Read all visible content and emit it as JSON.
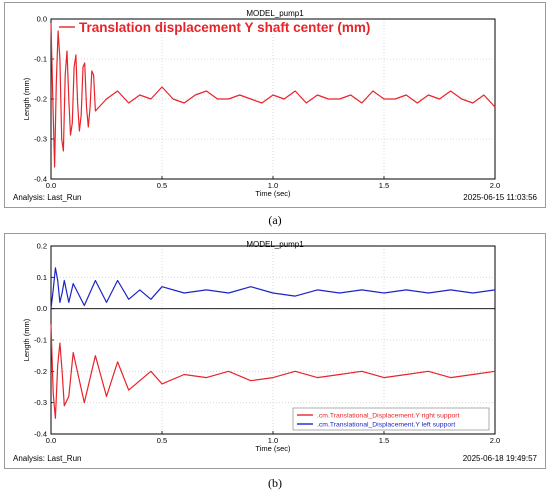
{
  "chart_data": [
    {
      "type": "line",
      "title": "MODEL_pump1",
      "xlabel": "Time (sec)",
      "ylabel": "Length (mm)",
      "xlim": [
        0.0,
        2.0
      ],
      "ylim": [
        -0.4,
        0.0
      ],
      "xticks": [
        "0.0",
        "0.5",
        "1.0",
        "1.5",
        "2.0"
      ],
      "yticks": [
        "0.0",
        "-0.1",
        "-0.2",
        "-0.3",
        "-0.4"
      ],
      "grid": true,
      "legend_position": "top-left",
      "analysis_label": "Analysis:  Last_Run",
      "timestamp": "2025-06-15 11:03:56",
      "caption": "(a)",
      "series": [
        {
          "name": "Translation displacement Y shaft center (mm)",
          "color": "#e8242b",
          "x": [
            0.0,
            0.008,
            0.016,
            0.024,
            0.032,
            0.04,
            0.048,
            0.056,
            0.064,
            0.072,
            0.08,
            0.088,
            0.096,
            0.104,
            0.112,
            0.12,
            0.128,
            0.136,
            0.144,
            0.152,
            0.16,
            0.168,
            0.176,
            0.184,
            0.192,
            0.2,
            0.25,
            0.3,
            0.35,
            0.4,
            0.45,
            0.5,
            0.55,
            0.6,
            0.65,
            0.7,
            0.75,
            0.8,
            0.85,
            0.9,
            0.95,
            1.0,
            1.05,
            1.1,
            1.15,
            1.2,
            1.25,
            1.3,
            1.35,
            1.4,
            1.45,
            1.5,
            1.55,
            1.6,
            1.65,
            1.7,
            1.75,
            1.8,
            1.85,
            1.9,
            1.95,
            2.0
          ],
          "y": [
            -0.01,
            -0.2,
            -0.37,
            -0.16,
            -0.03,
            -0.1,
            -0.3,
            -0.33,
            -0.14,
            -0.08,
            -0.2,
            -0.29,
            -0.26,
            -0.12,
            -0.09,
            -0.21,
            -0.28,
            -0.24,
            -0.12,
            -0.11,
            -0.22,
            -0.27,
            -0.22,
            -0.13,
            -0.14,
            -0.23,
            -0.2,
            -0.18,
            -0.21,
            -0.19,
            -0.2,
            -0.17,
            -0.2,
            -0.21,
            -0.19,
            -0.18,
            -0.2,
            -0.2,
            -0.19,
            -0.2,
            -0.21,
            -0.19,
            -0.2,
            -0.18,
            -0.21,
            -0.19,
            -0.2,
            -0.2,
            -0.19,
            -0.21,
            -0.18,
            -0.2,
            -0.2,
            -0.19,
            -0.21,
            -0.19,
            -0.2,
            -0.18,
            -0.2,
            -0.21,
            -0.19,
            -0.22
          ]
        }
      ]
    },
    {
      "type": "line",
      "title": "MODEL_pump1",
      "xlabel": "Time (sec)",
      "ylabel": "Length (mm)",
      "xlim": [
        0.0,
        2.0
      ],
      "ylim": [
        -0.4,
        0.2
      ],
      "xticks": [
        "0.0",
        "0.5",
        "1.0",
        "1.5",
        "2.0"
      ],
      "yticks": [
        "0.2",
        "0.1",
        "0.0",
        "-0.1",
        "-0.2",
        "-0.3",
        "-0.4"
      ],
      "grid": true,
      "legend_position": "bottom-right",
      "analysis_label": "Analysis:  Last_Run",
      "timestamp": "2025-06-18 19:49:57",
      "caption": "(b)",
      "series": [
        {
          "name": ".cm.Translational_Displacement.Y right support",
          "color": "#e8242b",
          "x": [
            0.0,
            0.01,
            0.02,
            0.03,
            0.04,
            0.05,
            0.06,
            0.08,
            0.1,
            0.15,
            0.2,
            0.25,
            0.3,
            0.35,
            0.4,
            0.45,
            0.5,
            0.6,
            0.7,
            0.8,
            0.9,
            1.0,
            1.1,
            1.2,
            1.3,
            1.4,
            1.5,
            1.6,
            1.7,
            1.8,
            1.9,
            2.0
          ],
          "y": [
            -0.05,
            -0.27,
            -0.35,
            -0.18,
            -0.11,
            -0.2,
            -0.31,
            -0.28,
            -0.14,
            -0.3,
            -0.15,
            -0.28,
            -0.17,
            -0.26,
            -0.23,
            -0.2,
            -0.24,
            -0.21,
            -0.22,
            -0.2,
            -0.23,
            -0.22,
            -0.2,
            -0.22,
            -0.21,
            -0.2,
            -0.22,
            -0.21,
            -0.2,
            -0.22,
            -0.21,
            -0.2
          ]
        },
        {
          "name": ".cm.Translational_Displacement.Y left support",
          "color": "#1c24c8",
          "x": [
            0.0,
            0.01,
            0.02,
            0.03,
            0.04,
            0.05,
            0.06,
            0.08,
            0.1,
            0.15,
            0.2,
            0.25,
            0.3,
            0.35,
            0.4,
            0.45,
            0.5,
            0.6,
            0.7,
            0.8,
            0.9,
            1.0,
            1.1,
            1.2,
            1.3,
            1.4,
            1.5,
            1.6,
            1.7,
            1.8,
            1.9,
            2.0
          ],
          "y": [
            0.0,
            0.06,
            0.13,
            0.09,
            0.02,
            0.05,
            0.09,
            0.02,
            0.08,
            0.01,
            0.09,
            0.02,
            0.09,
            0.03,
            0.06,
            0.03,
            0.07,
            0.05,
            0.06,
            0.05,
            0.07,
            0.05,
            0.04,
            0.06,
            0.05,
            0.06,
            0.05,
            0.06,
            0.05,
            0.06,
            0.05,
            0.06
          ]
        }
      ]
    }
  ]
}
